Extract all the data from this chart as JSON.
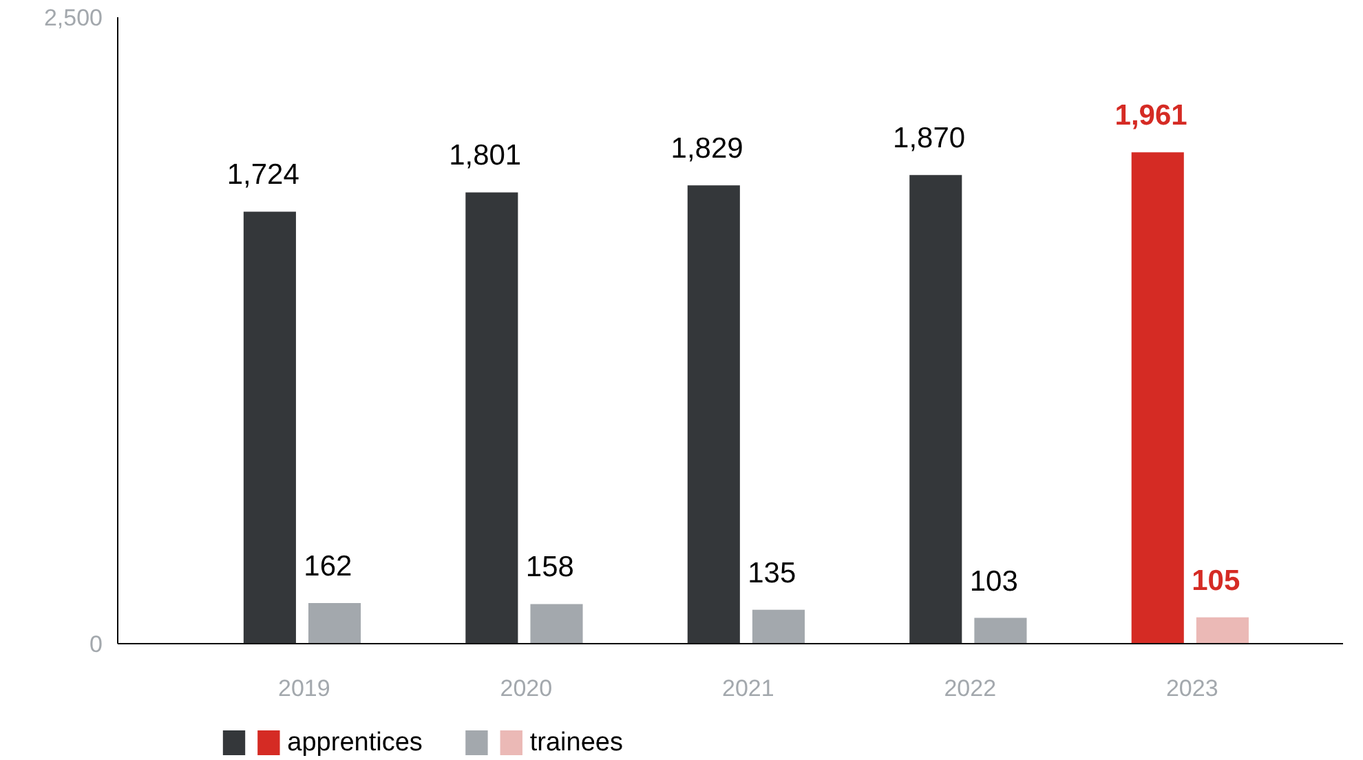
{
  "chart_data": {
    "type": "bar",
    "categories": [
      "2019",
      "2020",
      "2021",
      "2022",
      "2023"
    ],
    "series": [
      {
        "name": "apprentices",
        "color": "#34373a",
        "colors": [
          "#34373a",
          "#34373a",
          "#34373a",
          "#34373a",
          "#d52b24"
        ],
        "values": [
          1724,
          1801,
          1829,
          1870,
          1961
        ],
        "value_labels": [
          "1,724",
          "1,801",
          "1,829",
          "1,870",
          "1,961"
        ]
      },
      {
        "name": "trainees",
        "color": "#a3a8ad",
        "colors": [
          "#a3a8ad",
          "#a3a8ad",
          "#a3a8ad",
          "#a3a8ad",
          "#ebb9b6"
        ],
        "values": [
          162,
          158,
          135,
          103,
          105
        ],
        "value_labels": [
          "162",
          "158",
          "135",
          "103",
          "105"
        ]
      }
    ],
    "ylim": [
      0,
      2500
    ],
    "yticks": [
      0,
      {
        "value": 2500,
        "label": "2,500"
      }
    ],
    "grid": false,
    "legend": "bottom left"
  }
}
